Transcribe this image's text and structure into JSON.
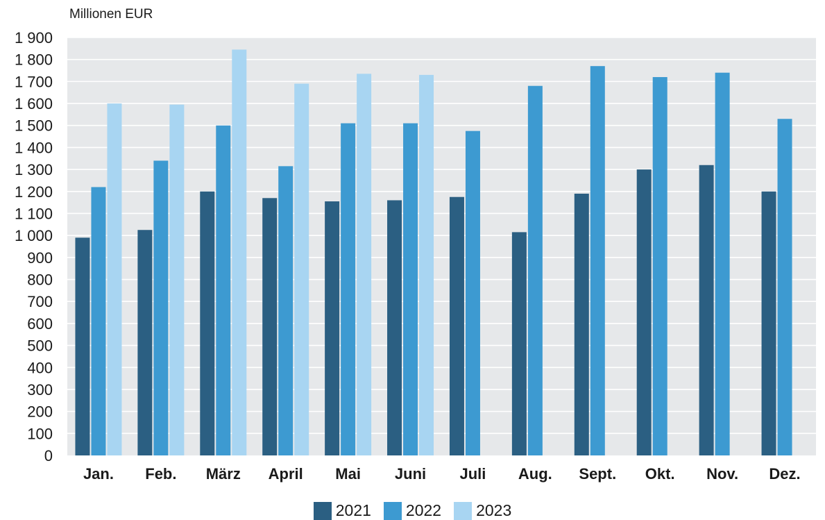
{
  "chart_data": {
    "type": "bar",
    "title": "",
    "ylabel": "Millionen EUR",
    "xlabel": "",
    "ylim": [
      0,
      1900
    ],
    "yticks": [
      0,
      100,
      200,
      300,
      400,
      500,
      600,
      700,
      800,
      900,
      1000,
      1100,
      1200,
      1300,
      1400,
      1500,
      1600,
      1700,
      1800,
      1900
    ],
    "ytick_labels": [
      "0",
      "100",
      "200",
      "300",
      "400",
      "500",
      "600",
      "700",
      "800",
      "900",
      "1 000",
      "1 100",
      "1 200",
      "1 300",
      "1 400",
      "1 500",
      "1 600",
      "1 700",
      "1 800",
      "1 900"
    ],
    "categories": [
      "Jan.",
      "Feb.",
      "März",
      "April",
      "Mai",
      "Juni",
      "Juli",
      "Aug.",
      "Sept.",
      "Okt.",
      "Nov.",
      "Dez."
    ],
    "series": [
      {
        "name": "2021",
        "color": "#2b5f82",
        "values": [
          990,
          1025,
          1200,
          1170,
          1155,
          1160,
          1175,
          1015,
          1190,
          1300,
          1320,
          1200
        ]
      },
      {
        "name": "2022",
        "color": "#3d9ad1",
        "values": [
          1220,
          1340,
          1500,
          1315,
          1510,
          1510,
          1475,
          1680,
          1770,
          1720,
          1740,
          1530
        ]
      },
      {
        "name": "2023",
        "color": "#a8d5f2",
        "values": [
          1600,
          1595,
          1845,
          1690,
          1735,
          1730,
          null,
          null,
          null,
          null,
          null,
          null
        ]
      }
    ],
    "grid": true,
    "plot_background": "#e6e8ea",
    "legend_position": "bottom-center"
  }
}
